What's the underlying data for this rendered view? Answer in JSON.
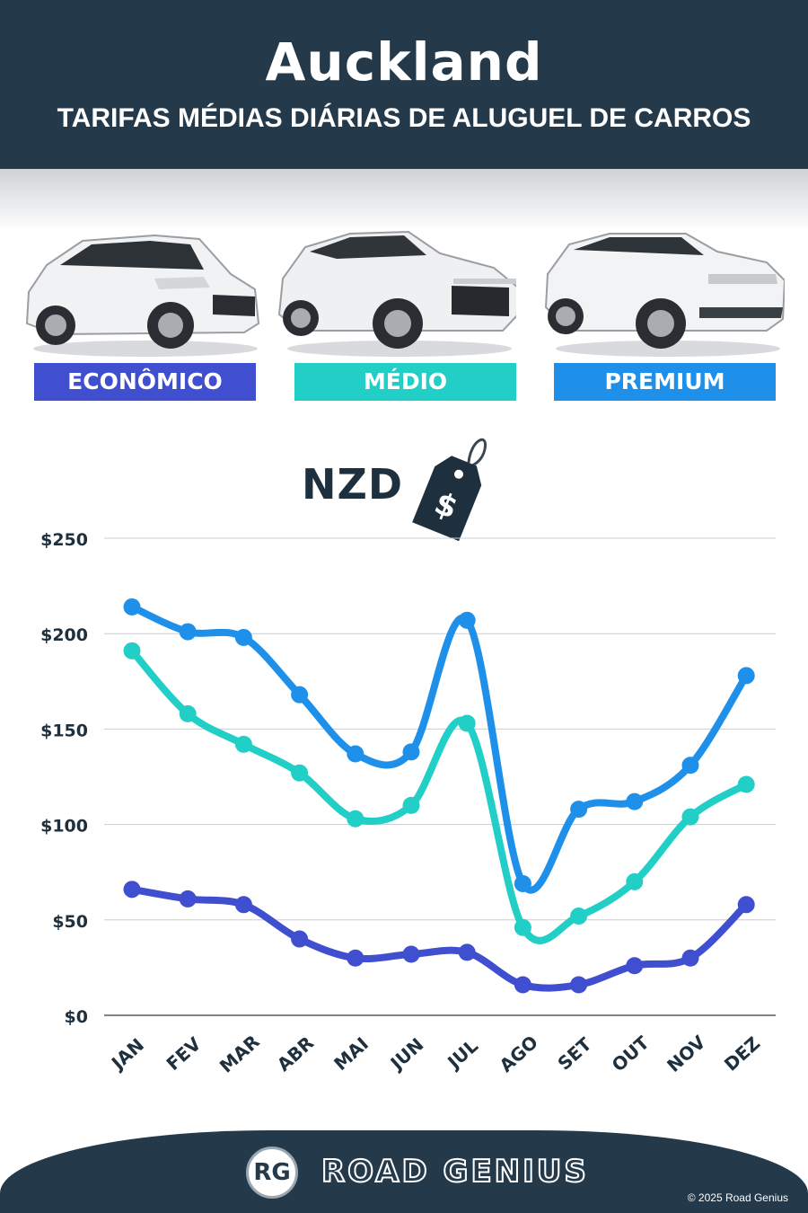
{
  "header": {
    "title": "Auckland",
    "subtitle": "TARIFAS MÉDIAS DIÁRIAS DE ALUGUEL DE CARROS"
  },
  "categories": [
    {
      "label": "ECONÔMICO",
      "color": "#3f4fcf"
    },
    {
      "label": "MÉDIO",
      "color": "#22cfc6"
    },
    {
      "label": "PREMIUM",
      "color": "#1e90ea"
    }
  ],
  "currency": {
    "label": "NZD",
    "tag_symbol": "$"
  },
  "chart_data": {
    "type": "line",
    "categories": [
      "JAN",
      "FEV",
      "MAR",
      "ABR",
      "MAI",
      "JUN",
      "JUL",
      "AGO",
      "SET",
      "OUT",
      "NOV",
      "DEZ"
    ],
    "series": [
      {
        "name": "ECONÔMICO",
        "color": "#3f4fcf",
        "values": [
          66,
          61,
          58,
          40,
          30,
          32,
          33,
          16,
          16,
          26,
          30,
          58
        ]
      },
      {
        "name": "MÉDIO",
        "color": "#22cfc6",
        "values": [
          191,
          158,
          142,
          127,
          103,
          110,
          153,
          46,
          52,
          70,
          104,
          121
        ]
      },
      {
        "name": "PREMIUM",
        "color": "#1e90ea",
        "values": [
          214,
          201,
          198,
          168,
          137,
          138,
          207,
          69,
          108,
          112,
          131,
          178
        ]
      }
    ],
    "yticks": [
      "$0",
      "$50",
      "$100",
      "$150",
      "$200",
      "$250"
    ],
    "ylim": [
      0,
      250
    ],
    "grid": true
  },
  "footer": {
    "logo_mark": "RG",
    "brand": "ROAD GENIUS",
    "copyright": "© 2025 Road Genius"
  }
}
